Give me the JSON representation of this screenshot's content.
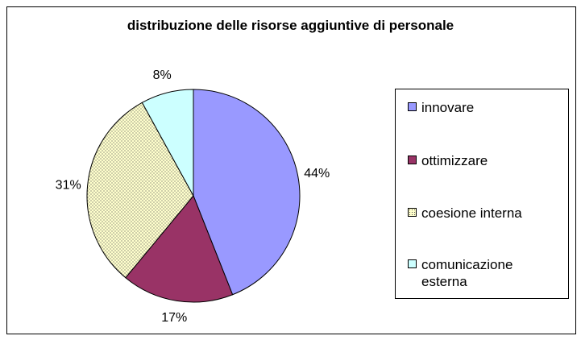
{
  "chart_data": {
    "type": "pie",
    "title": "distribuzione delle risorse aggiuntive di personale",
    "categories": [
      "innovare",
      "ottimizzare",
      "coesione interna",
      "comunicazione esterna"
    ],
    "values": [
      44,
      17,
      31,
      8
    ],
    "labels": [
      "44%",
      "17%",
      "31%",
      "8%"
    ],
    "colors": [
      "#9999ff",
      "#993366",
      "#ffffcc",
      "#ccffff"
    ],
    "patterns": [
      "solid",
      "solid",
      "dotted",
      "solid"
    ],
    "legend_position": "right"
  }
}
